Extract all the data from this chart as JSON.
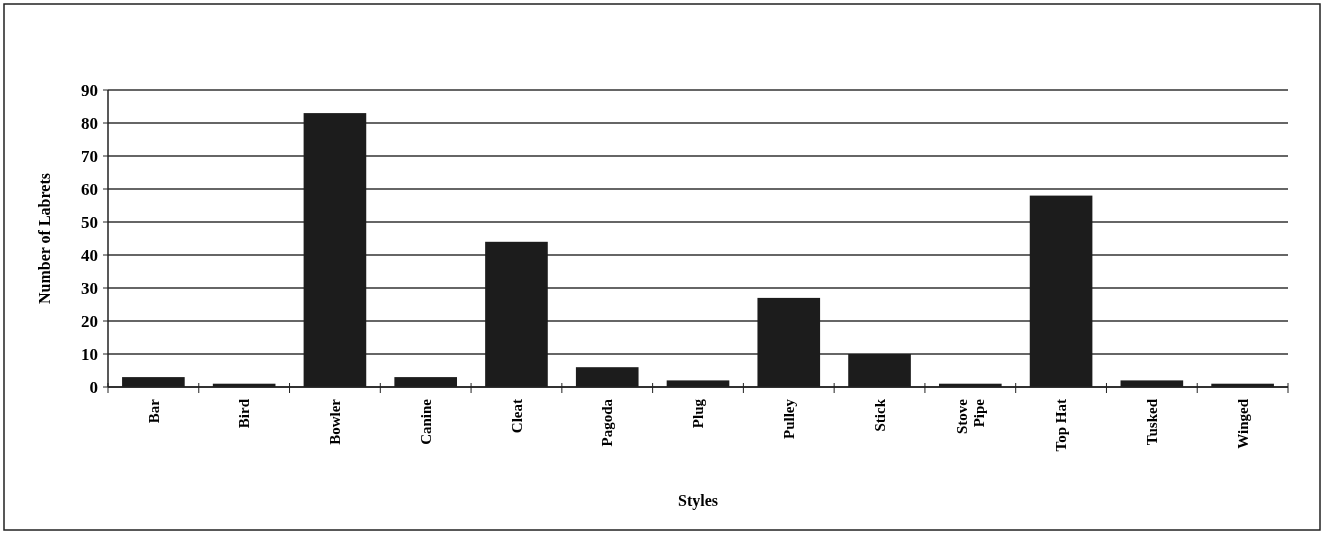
{
  "chart_data": {
    "type": "bar",
    "xlabel": "Styles",
    "ylabel": "Number of Labrets",
    "categories": [
      "Bar",
      "Bird",
      "Bowler",
      "Canine",
      "Cleat",
      "Pagoda",
      "Plug",
      "Pulley",
      "Stick",
      "Stove\nPipe",
      "Top Hat",
      "Tusked",
      "Winged"
    ],
    "values": [
      3,
      1,
      83,
      3,
      44,
      6,
      2,
      27,
      10,
      1,
      58,
      2,
      1
    ],
    "color": "#1c1c1c",
    "ylim": [
      0,
      90
    ],
    "yticks": [
      0,
      10,
      20,
      30,
      40,
      50,
      60,
      70,
      80,
      90
    ],
    "grid": "y"
  }
}
